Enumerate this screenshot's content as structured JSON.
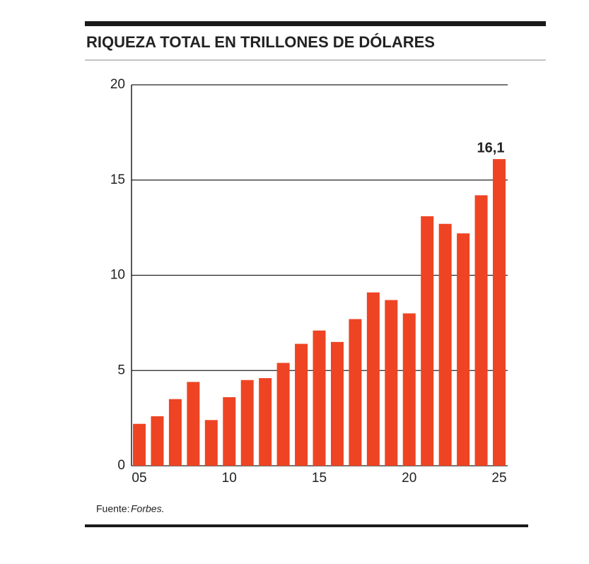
{
  "chart_data": {
    "type": "bar",
    "title": "RIQUEZA TOTAL EN TRILLONES DE DÓLARES",
    "categories": [
      "05",
      null,
      null,
      null,
      null,
      "10",
      null,
      null,
      null,
      null,
      "15",
      null,
      null,
      null,
      null,
      "20",
      null,
      null,
      null,
      null,
      "25"
    ],
    "values": [
      2.2,
      2.6,
      3.5,
      4.4,
      2.4,
      3.6,
      4.5,
      4.6,
      5.4,
      6.4,
      7.1,
      6.5,
      7.7,
      9.1,
      8.7,
      8.0,
      13.1,
      12.7,
      12.2,
      14.2,
      16.1
    ],
    "value_labels": [
      null,
      null,
      null,
      null,
      null,
      null,
      null,
      null,
      null,
      null,
      null,
      null,
      null,
      null,
      null,
      null,
      null,
      null,
      null,
      null,
      "16,1"
    ],
    "color": "#ee4423",
    "ylim": [
      0,
      20
    ],
    "yticks": [
      0,
      5,
      10,
      15,
      20
    ],
    "grid": true,
    "source_label": "Fuente:",
    "source": "Forbes."
  }
}
